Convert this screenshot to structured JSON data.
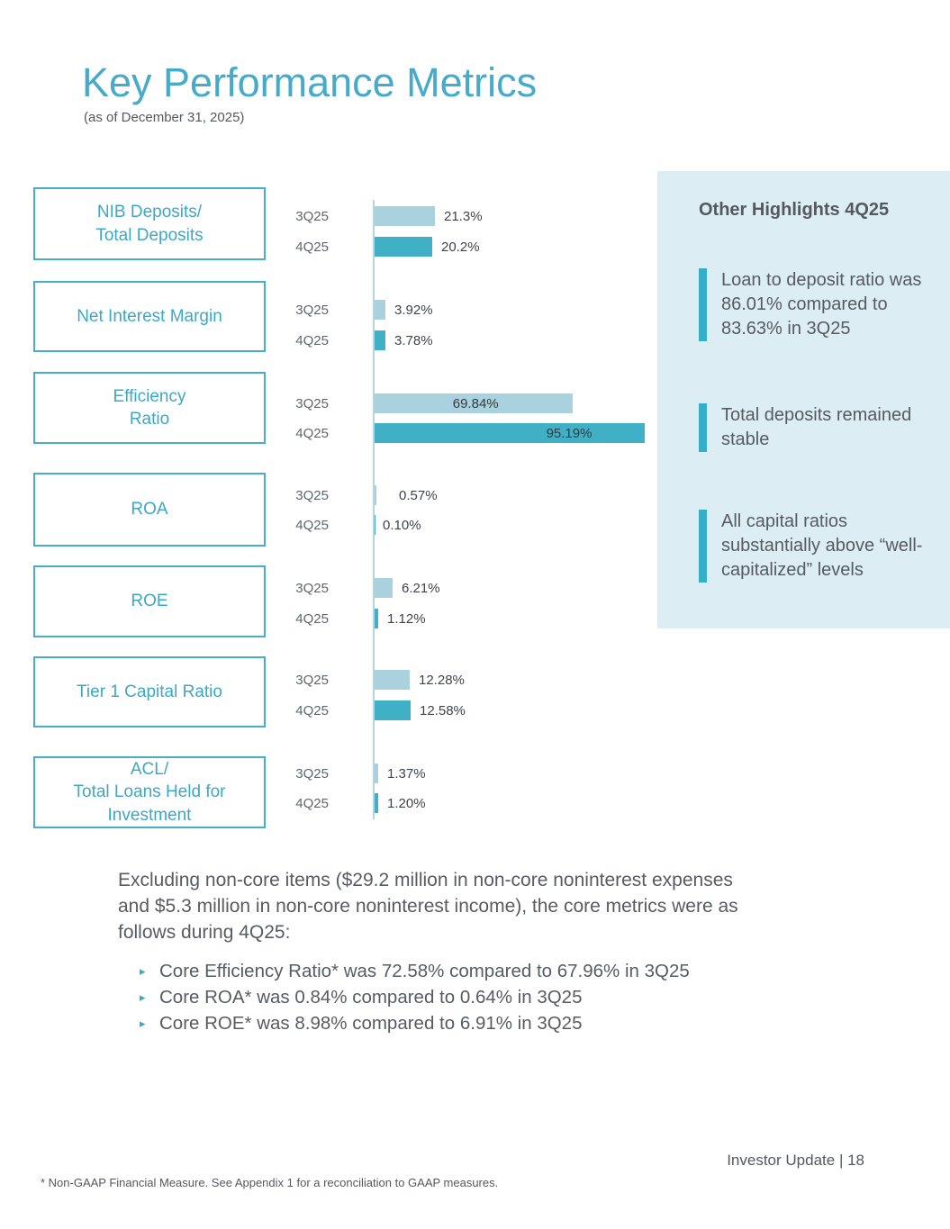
{
  "slide": {
    "title": "Key Performance Metrics",
    "subtitle": "(as of December 31, 2025)",
    "footer": "Investor Update | 18",
    "footnote": "* Non-GAAP Financial Measure. See Appendix 1 for a reconciliation to GAAP measures."
  },
  "colors": {
    "accent": "#3aabc5",
    "bar_light": "#a9d1de",
    "bar_dark": "#3fb0c5",
    "panel_bg": "#dcedf3",
    "text_gray": "#54595f"
  },
  "chart_data": {
    "type": "bar",
    "orientation": "horizontal",
    "series_labels": [
      "3Q25",
      "4Q25"
    ],
    "unit": "%",
    "xlim": [
      0,
      100
    ],
    "grid": false,
    "legend": "none",
    "metrics": [
      {
        "label_lines": [
          "NIB Deposits/",
          "Total Deposits"
        ],
        "values": [
          21.3,
          20.2
        ],
        "value_labels": [
          "21.3%",
          "20.2%"
        ]
      },
      {
        "label_lines": [
          "Net Interest Margin"
        ],
        "values": [
          3.92,
          3.78
        ],
        "value_labels": [
          "3.92%",
          "3.78%"
        ]
      },
      {
        "label_lines": [
          "Efficiency",
          "Ratio"
        ],
        "values": [
          69.84,
          95.19
        ],
        "value_labels": [
          "69.84%",
          "95.19%"
        ]
      },
      {
        "label_lines": [
          "ROA"
        ],
        "values": [
          0.57,
          0.1
        ],
        "value_labels": [
          "0.57%",
          "0.10%"
        ]
      },
      {
        "label_lines": [
          "ROE"
        ],
        "values": [
          6.21,
          1.12
        ],
        "value_labels": [
          "6.21%",
          "1.12%"
        ]
      },
      {
        "label_lines": [
          "Tier 1 Capital Ratio"
        ],
        "values": [
          12.28,
          12.58
        ],
        "value_labels": [
          "12.28%",
          "12.58%"
        ]
      },
      {
        "label_lines": [
          "ACL/",
          "Total Loans Held for",
          "Investment"
        ],
        "values": [
          1.37,
          1.2
        ],
        "value_labels": [
          "1.37%",
          "1.20%"
        ]
      }
    ]
  },
  "highlights": {
    "title": "Other Highlights 4Q25",
    "items": [
      {
        "text": "Loan to deposit ratio was 86.01% compared to 83.63% in 3Q25"
      },
      {
        "text": "Total deposits remained stable"
      },
      {
        "text": "All capital ratios substantially above “well-capitalized” levels"
      }
    ]
  },
  "notes": {
    "paragraph_lines": [
      "Excluding non-core items ($29.2 million in non-core noninterest expenses",
      "and $5.3 million in non-core noninterest income), the core metrics were as",
      "follows during 4Q25:"
    ],
    "bullets": [
      "Core Efficiency Ratio* was 72.58% compared to 67.96% in 3Q25",
      "Core ROA* was 0.84% compared to 0.64% in 3Q25",
      "Core ROE* was 8.98% compared to 6.91% in 3Q25"
    ]
  }
}
